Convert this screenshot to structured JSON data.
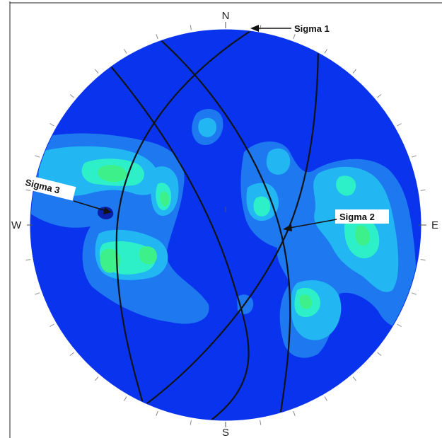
{
  "directions": {
    "north": "N",
    "south": "S",
    "east": "E",
    "west": "W"
  },
  "annotations": {
    "sigma1": "Sigma 1",
    "sigma2": "Sigma 2",
    "sigma3": "Sigma 3"
  },
  "colors": {
    "background_density": "#0a33ee",
    "level1": "#1e78f0",
    "level2": "#22b6f2",
    "level3": "#2ef0c8",
    "level4": "#3ef08a",
    "great_circle": "#101418"
  }
}
